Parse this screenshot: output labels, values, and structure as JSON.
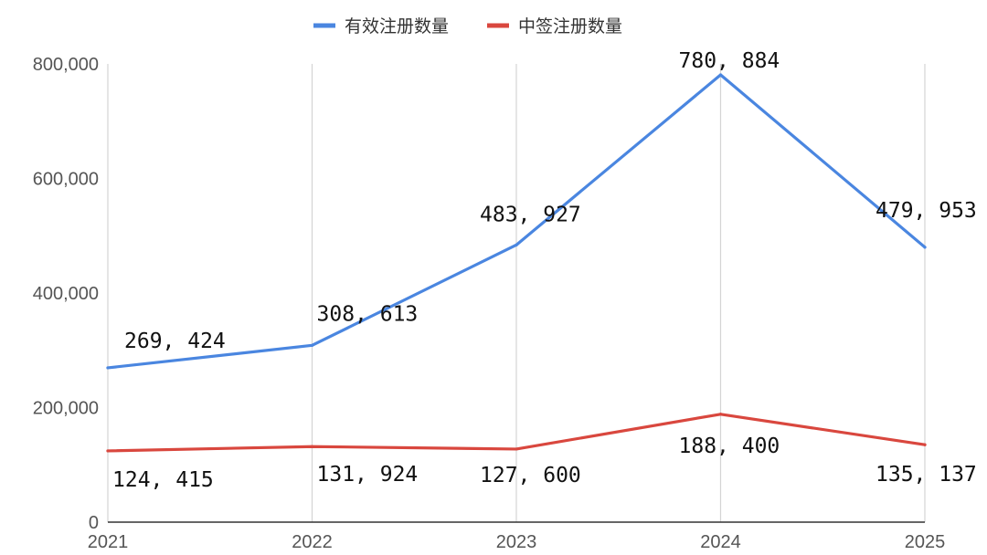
{
  "chart_data": {
    "type": "line",
    "categories": [
      "2021",
      "2022",
      "2023",
      "2024",
      "2025"
    ],
    "series": [
      {
        "name": "有效注册数量",
        "color": "#4a86e0",
        "values": [
          269424,
          308613,
          483927,
          780884,
          479953
        ],
        "data_labels": [
          "269, 424",
          "308, 613",
          "483, 927",
          "780, 884",
          "479, 953"
        ]
      },
      {
        "name": "中签注册数量",
        "color": "#d9473e",
        "values": [
          124415,
          131924,
          127600,
          188400,
          135137
        ],
        "data_labels": [
          "124, 415",
          "131, 924",
          "127, 600",
          "188, 400",
          "135, 137"
        ]
      }
    ],
    "y_ticks": [
      "0",
      "200,000",
      "400,000",
      "600,000",
      "800,000"
    ],
    "ylim": [
      0,
      800000
    ],
    "grid": "vertical",
    "legend_position": "top-center"
  }
}
